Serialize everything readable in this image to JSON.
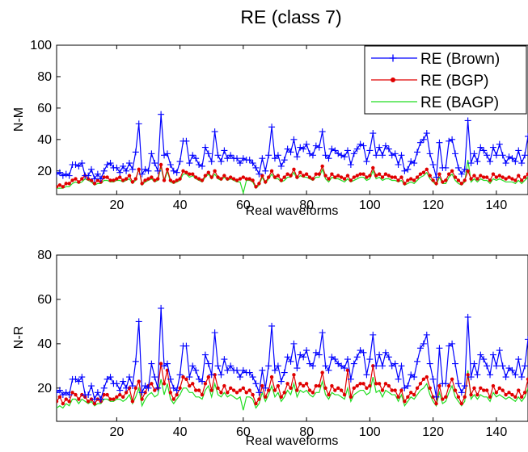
{
  "chart_data": [
    {
      "type": "line",
      "title": "RE (class 7)",
      "xlabel": "Real waveforms",
      "ylabel": "N-M",
      "xlim": [
        1,
        150
      ],
      "ylim": [
        5,
        100
      ],
      "xticks": [
        20,
        40,
        60,
        80,
        100,
        120,
        140
      ],
      "yticks": [
        20,
        40,
        60,
        80,
        100
      ],
      "legend": "top-right",
      "series": [
        {
          "name": "RE (Brown)",
          "color": "#0000ff",
          "marker": "plus",
          "values": [
            18,
            19,
            17,
            18,
            17,
            24,
            24,
            23,
            25,
            17,
            17,
            21,
            15,
            18,
            15,
            20,
            24,
            25,
            22,
            22,
            19,
            23,
            20,
            25,
            21,
            32,
            50,
            18,
            21,
            20,
            31,
            25,
            20,
            56,
            30,
            31,
            24,
            20,
            19,
            26,
            39,
            39,
            25,
            30,
            28,
            24,
            23,
            35,
            31,
            26,
            45,
            30,
            26,
            33,
            28,
            30,
            28,
            28,
            25,
            28,
            27,
            27,
            25,
            22,
            18,
            28,
            20,
            30,
            48,
            28,
            30,
            23,
            27,
            34,
            32,
            40,
            29,
            35,
            34,
            37,
            31,
            30,
            36,
            35,
            45,
            30,
            28,
            34,
            33,
            31,
            30,
            29,
            33,
            24,
            31,
            34,
            37,
            36,
            26,
            33,
            44,
            30,
            35,
            30,
            36,
            34,
            30,
            31,
            24,
            30,
            20,
            21,
            26,
            25,
            32,
            38,
            40,
            44,
            31,
            24,
            16,
            38,
            22,
            22,
            39,
            40,
            31,
            22,
            18,
            21,
            52,
            25,
            31,
            26,
            35,
            33,
            30,
            26,
            35,
            30,
            37,
            30,
            25,
            29,
            28,
            26,
            33,
            25,
            30,
            42
          ]
        },
        {
          "name": "RE (BGP)",
          "color": "#e00000",
          "marker": "dot",
          "values": [
            10,
            11,
            10,
            12,
            12,
            14,
            15,
            13,
            15,
            17,
            15,
            14,
            12,
            14,
            13,
            16,
            16,
            14,
            14,
            15,
            16,
            14,
            15,
            17,
            13,
            15,
            21,
            12,
            14,
            15,
            16,
            14,
            15,
            24,
            14,
            21,
            14,
            13,
            14,
            15,
            20,
            19,
            18,
            18,
            16,
            15,
            14,
            17,
            19,
            16,
            20,
            16,
            15,
            17,
            15,
            16,
            15,
            14,
            15,
            16,
            15,
            15,
            14,
            10,
            12,
            17,
            13,
            16,
            20,
            16,
            17,
            14,
            16,
            18,
            17,
            21,
            16,
            19,
            17,
            18,
            16,
            15,
            18,
            18,
            23,
            17,
            15,
            18,
            16,
            17,
            16,
            15,
            17,
            14,
            16,
            17,
            18,
            18,
            16,
            17,
            22,
            17,
            18,
            16,
            18,
            17,
            16,
            16,
            14,
            16,
            12,
            14,
            15,
            14,
            16,
            18,
            19,
            21,
            17,
            14,
            12,
            18,
            13,
            14,
            18,
            20,
            16,
            14,
            12,
            14,
            20,
            15,
            17,
            15,
            17,
            16,
            16,
            14,
            18,
            16,
            17,
            16,
            15,
            16,
            15,
            14,
            17,
            14,
            16,
            18
          ]
        },
        {
          "name": "RE (BAGP)",
          "color": "#22dd22",
          "marker": "none",
          "values": [
            9,
            9,
            9,
            10,
            10,
            12,
            13,
            12,
            13,
            15,
            14,
            13,
            11,
            12,
            12,
            14,
            14,
            13,
            13,
            14,
            14,
            13,
            14,
            15,
            12,
            14,
            22,
            11,
            13,
            14,
            15,
            13,
            14,
            23,
            13,
            20,
            13,
            12,
            13,
            14,
            18,
            18,
            16,
            17,
            15,
            14,
            13,
            16,
            18,
            15,
            18,
            15,
            14,
            16,
            14,
            15,
            14,
            13,
            13,
            6,
            14,
            14,
            13,
            9,
            11,
            16,
            12,
            15,
            18,
            15,
            15,
            13,
            14,
            16,
            16,
            19,
            15,
            17,
            16,
            16,
            15,
            14,
            16,
            16,
            21,
            15,
            13,
            16,
            15,
            15,
            14,
            13,
            15,
            13,
            14,
            15,
            16,
            16,
            14,
            15,
            20,
            15,
            16,
            14,
            15,
            15,
            14,
            14,
            13,
            14,
            11,
            12,
            13,
            12,
            14,
            16,
            17,
            19,
            15,
            13,
            11,
            16,
            12,
            12,
            16,
            18,
            14,
            12,
            11,
            13,
            27,
            13,
            15,
            13,
            15,
            14,
            14,
            12,
            15,
            14,
            15,
            14,
            13,
            13,
            13,
            12,
            14,
            12,
            14,
            16
          ]
        }
      ]
    },
    {
      "type": "line",
      "title": "",
      "xlabel": "Real waveforms",
      "ylabel": "N-R",
      "xlim": [
        1,
        150
      ],
      "ylim": [
        5,
        80
      ],
      "xticks": [
        20,
        40,
        60,
        80,
        100,
        120,
        140
      ],
      "yticks": [
        20,
        40,
        60,
        80
      ],
      "legend": "none",
      "series": [
        {
          "name": "RE (Brown)",
          "color": "#0000ff",
          "marker": "plus",
          "values": [
            18,
            19,
            17,
            18,
            17,
            24,
            24,
            23,
            25,
            17,
            17,
            21,
            15,
            18,
            15,
            20,
            24,
            25,
            22,
            22,
            19,
            23,
            20,
            25,
            21,
            32,
            50,
            18,
            21,
            20,
            31,
            25,
            20,
            56,
            30,
            31,
            24,
            20,
            19,
            26,
            39,
            39,
            25,
            30,
            28,
            24,
            23,
            35,
            31,
            26,
            45,
            30,
            26,
            33,
            28,
            30,
            28,
            28,
            25,
            28,
            27,
            27,
            25,
            22,
            18,
            28,
            20,
            30,
            48,
            28,
            30,
            23,
            27,
            34,
            32,
            40,
            29,
            35,
            34,
            37,
            31,
            30,
            36,
            35,
            45,
            30,
            28,
            34,
            33,
            31,
            30,
            29,
            33,
            24,
            31,
            34,
            37,
            36,
            26,
            33,
            44,
            30,
            35,
            30,
            36,
            34,
            30,
            31,
            24,
            30,
            20,
            21,
            26,
            25,
            32,
            38,
            40,
            44,
            31,
            24,
            16,
            38,
            22,
            22,
            39,
            40,
            31,
            22,
            18,
            21,
            52,
            25,
            31,
            26,
            35,
            33,
            30,
            26,
            35,
            30,
            37,
            30,
            25,
            29,
            28,
            26,
            33,
            25,
            30,
            42
          ]
        },
        {
          "name": "RE (BGP)",
          "color": "#e00000",
          "marker": "dot",
          "values": [
            14,
            16,
            13,
            15,
            14,
            18,
            17,
            15,
            17,
            16,
            14,
            15,
            13,
            15,
            14,
            17,
            17,
            15,
            15,
            16,
            17,
            16,
            18,
            20,
            14,
            20,
            23,
            15,
            18,
            21,
            22,
            19,
            20,
            31,
            22,
            28,
            18,
            15,
            17,
            20,
            25,
            24,
            21,
            22,
            19,
            19,
            17,
            22,
            25,
            19,
            26,
            20,
            18,
            21,
            18,
            20,
            19,
            18,
            19,
            20,
            18,
            19,
            17,
            13,
            15,
            21,
            16,
            19,
            25,
            19,
            21,
            16,
            18,
            22,
            20,
            26,
            19,
            22,
            21,
            22,
            19,
            18,
            21,
            21,
            27,
            20,
            17,
            21,
            19,
            20,
            19,
            17,
            28,
            16,
            20,
            21,
            22,
            22,
            20,
            21,
            30,
            22,
            22,
            19,
            22,
            21,
            19,
            19,
            16,
            19,
            14,
            16,
            18,
            17,
            20,
            22,
            24,
            25,
            20,
            16,
            13,
            21,
            15,
            16,
            21,
            24,
            19,
            16,
            13,
            16,
            26,
            17,
            20,
            17,
            20,
            19,
            19,
            16,
            21,
            18,
            20,
            19,
            17,
            18,
            17,
            16,
            19,
            16,
            18,
            24
          ]
        },
        {
          "name": "RE (BAGP)",
          "color": "#22dd22",
          "marker": "none",
          "values": [
            11,
            12,
            11,
            13,
            12,
            15,
            15,
            13,
            15,
            14,
            13,
            14,
            12,
            13,
            13,
            15,
            15,
            14,
            14,
            15,
            15,
            14,
            15,
            17,
            13,
            16,
            20,
            12,
            15,
            17,
            18,
            16,
            17,
            24,
            17,
            22,
            15,
            13,
            15,
            17,
            20,
            20,
            18,
            18,
            16,
            16,
            15,
            19,
            21,
            16,
            22,
            17,
            16,
            18,
            16,
            17,
            16,
            15,
            16,
            10,
            16,
            16,
            15,
            11,
            13,
            18,
            14,
            17,
            21,
            16,
            18,
            14,
            16,
            19,
            17,
            22,
            16,
            19,
            18,
            19,
            17,
            16,
            18,
            18,
            23,
            17,
            15,
            18,
            17,
            17,
            16,
            15,
            20,
            14,
            17,
            18,
            19,
            19,
            17,
            18,
            25,
            18,
            19,
            16,
            19,
            18,
            17,
            17,
            14,
            17,
            12,
            14,
            16,
            15,
            17,
            19,
            20,
            22,
            17,
            14,
            12,
            18,
            13,
            14,
            18,
            21,
            16,
            14,
            12,
            14,
            28,
            15,
            17,
            15,
            17,
            16,
            16,
            14,
            18,
            16,
            17,
            16,
            15,
            16,
            15,
            14,
            16,
            14,
            16,
            20
          ]
        }
      ]
    }
  ]
}
